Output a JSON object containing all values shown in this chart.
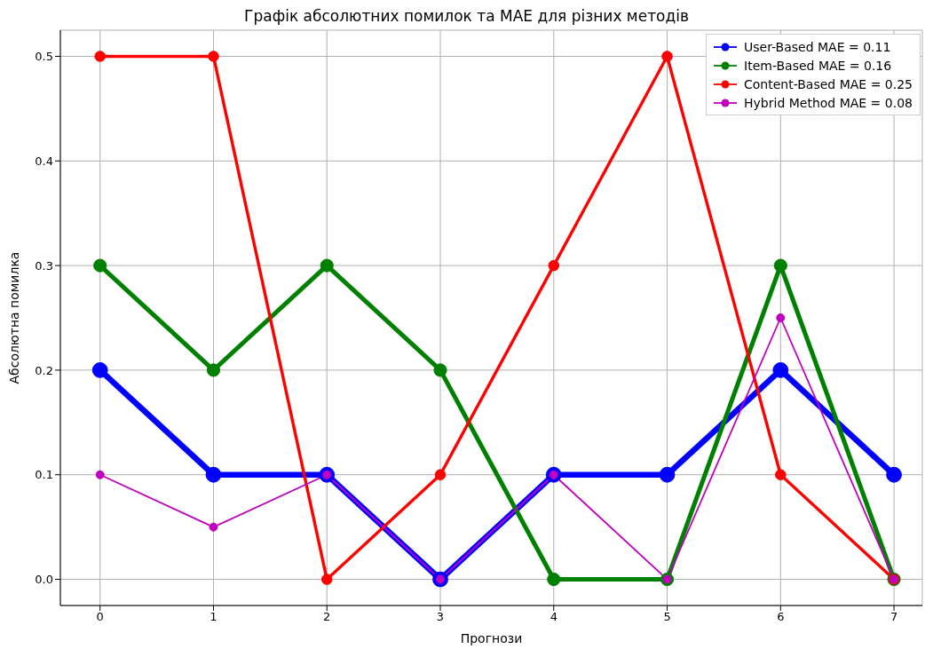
{
  "chart_data": {
    "type": "line",
    "title": "Графік абсолютних помилок та MAE для різних методів",
    "xlabel": "Прогнози",
    "ylabel": "Абсолютна помилка",
    "x": [
      0,
      1,
      2,
      3,
      4,
      5,
      6,
      7
    ],
    "series": [
      {
        "name": "User-Based MAE = 0.11",
        "color": "#0000ff",
        "values": [
          0.2,
          0.1,
          0.1,
          0,
          0.1,
          0.1,
          0.2,
          0.1
        ]
      },
      {
        "name": "Item-Based MAE = 0.16",
        "color": "#008000",
        "values": [
          0.3,
          0.2,
          0.3,
          0.2,
          0,
          0,
          0.3,
          0
        ]
      },
      {
        "name": "Content-Based MAE = 0.25",
        "color": "#ff0000",
        "values": [
          0.5,
          0.5,
          0,
          0.1,
          0.3,
          0.5,
          0.1,
          0
        ]
      },
      {
        "name": "Hybrid Method MAE = 0.08",
        "color": "#bf00bf",
        "values": [
          0.1,
          0.05,
          0.1,
          0,
          0.1,
          0,
          0.25,
          0
        ]
      }
    ],
    "xlim": [
      -0.35,
      7.25
    ],
    "xticks": [
      0,
      1,
      2,
      3,
      4,
      5,
      6,
      7
    ],
    "ylim": [
      -0.025,
      0.525
    ],
    "yticks": [
      {
        "value": 0,
        "label": "0.0"
      },
      {
        "value": 0.1,
        "label": "0.1"
      },
      {
        "value": 0.2,
        "label": "0.2"
      },
      {
        "value": 0.3,
        "label": "0.3"
      },
      {
        "value": 0.4,
        "label": "0.4"
      },
      {
        "value": 0.5,
        "label": "0.5"
      }
    ],
    "grid": true,
    "legend": "top right",
    "marker": "circle",
    "line_style": "solid"
  }
}
